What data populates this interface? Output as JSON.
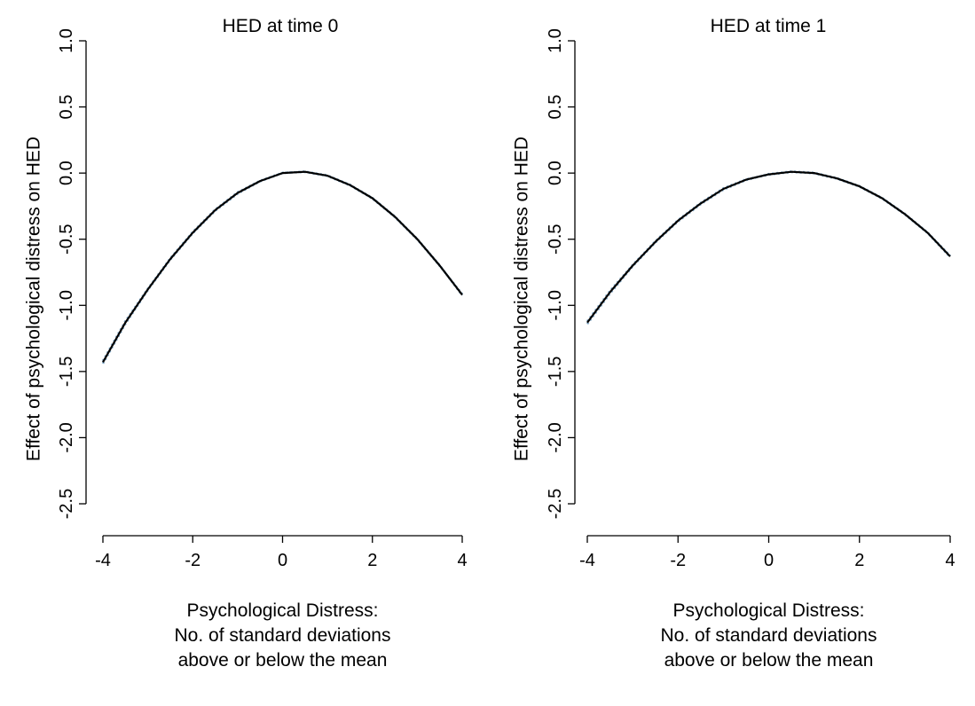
{
  "chart_data": [
    {
      "type": "line",
      "title": "HED at time 0",
      "xlabel": [
        "Psychological Distress:",
        "No. of standard deviations",
        "above or below the mean"
      ],
      "ylabel": "Effect of psychological distress on HED",
      "xlim": [
        -4,
        4
      ],
      "ylim": [
        -2.5,
        1.0
      ],
      "x_ticks": [
        -4,
        -2,
        0,
        2,
        4
      ],
      "x_tick_labels": [
        "-4",
        "-2",
        "0",
        "2",
        "4"
      ],
      "y_ticks": [
        -2.5,
        -2.0,
        -1.5,
        -1.0,
        -0.5,
        0.0,
        0.5,
        1.0
      ],
      "y_tick_labels": [
        "-2.5",
        "-2.0",
        "-1.5",
        "-1.0",
        "-0.5",
        "0.0",
        "0.5",
        "1.0"
      ],
      "grid": false,
      "series": [
        {
          "color": "#000000",
          "style": "solid",
          "x": [
            -4,
            -3.5,
            -3,
            -2.5,
            -2,
            -1.5,
            -1,
            -0.5,
            0,
            0.5,
            1,
            1.5,
            2,
            2.5,
            3,
            3.5,
            4
          ],
          "y": [
            -1.43,
            -1.13,
            -0.88,
            -0.65,
            -0.45,
            -0.28,
            -0.15,
            -0.06,
            0.0,
            0.01,
            -0.02,
            -0.09,
            -0.19,
            -0.33,
            -0.5,
            -0.7,
            -0.92
          ]
        },
        {
          "color": "#7fa8c8",
          "style": "dotted",
          "x": [
            -4,
            -3.5,
            -3,
            -2.5,
            -2,
            -1.5,
            -1,
            -0.5,
            0,
            0.5,
            1,
            1.5,
            2,
            2.5,
            3,
            3.5,
            4
          ],
          "y": [
            -1.44,
            -1.14,
            -0.885,
            -0.655,
            -0.455,
            -0.285,
            -0.155,
            -0.062,
            0.0,
            0.012,
            -0.018,
            -0.088,
            -0.188,
            -0.328,
            -0.498,
            -0.698,
            -0.925
          ]
        },
        {
          "color": "#7fa8c8",
          "style": "dotted",
          "x": [
            -4,
            -3.5,
            -3,
            -2.5,
            -2,
            -1.5,
            -1,
            -0.5,
            0,
            0.5,
            1,
            1.5,
            2,
            2.5,
            3,
            3.5,
            4
          ],
          "y": [
            -1.42,
            -1.12,
            -0.875,
            -0.645,
            -0.445,
            -0.275,
            -0.145,
            -0.058,
            0.002,
            0.008,
            -0.022,
            -0.092,
            -0.192,
            -0.332,
            -0.502,
            -0.702,
            -0.915
          ]
        }
      ]
    },
    {
      "type": "line",
      "title": "HED at time 1",
      "xlabel": [
        "Psychological Distress:",
        "No. of standard deviations",
        "above or below the mean"
      ],
      "ylabel": "Effect of psychological distress on HED",
      "xlim": [
        -4,
        4
      ],
      "ylim": [
        -2.5,
        1.0
      ],
      "x_ticks": [
        -4,
        -2,
        0,
        2,
        4
      ],
      "x_tick_labels": [
        "-4",
        "-2",
        "0",
        "2",
        "4"
      ],
      "y_ticks": [
        -2.5,
        -2.0,
        -1.5,
        -1.0,
        -0.5,
        0.0,
        0.5,
        1.0
      ],
      "y_tick_labels": [
        "-2.5",
        "-2.0",
        "-1.5",
        "-1.0",
        "-0.5",
        "0.0",
        "0.5",
        "1.0"
      ],
      "grid": false,
      "series": [
        {
          "color": "#000000",
          "style": "solid",
          "x": [
            -4,
            -3.5,
            -3,
            -2.5,
            -2,
            -1.5,
            -1,
            -0.5,
            0,
            0.5,
            1,
            1.5,
            2,
            2.5,
            3,
            3.5,
            4
          ],
          "y": [
            -1.13,
            -0.9,
            -0.7,
            -0.52,
            -0.36,
            -0.23,
            -0.12,
            -0.05,
            -0.01,
            0.01,
            0.0,
            -0.04,
            -0.1,
            -0.19,
            -0.31,
            -0.45,
            -0.63
          ]
        },
        {
          "color": "#7fa8c8",
          "style": "dotted",
          "x": [
            -4,
            -3.5,
            -3,
            -2.5,
            -2,
            -1.5,
            -1,
            -0.5,
            0,
            0.5,
            1,
            1.5,
            2,
            2.5,
            3,
            3.5,
            4
          ],
          "y": [
            -1.14,
            -0.91,
            -0.705,
            -0.525,
            -0.365,
            -0.235,
            -0.125,
            -0.053,
            -0.008,
            0.012,
            0.002,
            -0.038,
            -0.098,
            -0.188,
            -0.308,
            -0.448,
            -0.625
          ]
        },
        {
          "color": "#7fa8c8",
          "style": "dotted",
          "x": [
            -4,
            -3.5,
            -3,
            -2.5,
            -2,
            -1.5,
            -1,
            -0.5,
            0,
            0.5,
            1,
            1.5,
            2,
            2.5,
            3,
            3.5,
            4
          ],
          "y": [
            -1.12,
            -0.89,
            -0.695,
            -0.515,
            -0.355,
            -0.225,
            -0.115,
            -0.047,
            -0.012,
            0.008,
            -0.002,
            -0.042,
            -0.102,
            -0.192,
            -0.312,
            -0.452,
            -0.635
          ]
        }
      ]
    }
  ]
}
